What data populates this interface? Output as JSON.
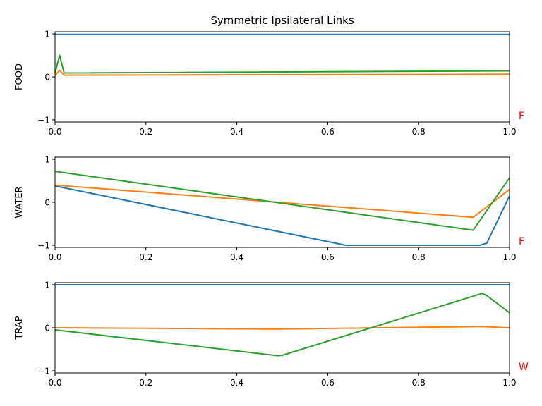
{
  "title": "Symmetric Ipsilateral Links",
  "colors": {
    "series1": "#1f77b4",
    "series2": "#ff7f0e",
    "series3": "#2ca02c",
    "corner_label": "#ff0000"
  },
  "chart_data": [
    {
      "type": "line",
      "ylabel": "FOOD",
      "corner_label": "F",
      "xlim": [
        0,
        1
      ],
      "ylim": [
        -1.05,
        1.05
      ],
      "xticks": [
        "0.0",
        "0.2",
        "0.4",
        "0.6",
        "0.8",
        "1.0"
      ],
      "yticks": [
        "−1",
        "0",
        "1"
      ],
      "series": [
        {
          "color": "#1f77b4",
          "x": [
            0,
            1
          ],
          "y": [
            0.99,
            0.99
          ]
        },
        {
          "color": "#ff7f0e",
          "x": [
            0,
            0.01,
            0.02,
            1
          ],
          "y": [
            0.03,
            0.15,
            0.04,
            0.06
          ]
        },
        {
          "color": "#2ca02c",
          "x": [
            0,
            0.01,
            0.02,
            1
          ],
          "y": [
            0.08,
            0.5,
            0.09,
            0.14
          ]
        }
      ]
    },
    {
      "type": "line",
      "ylabel": "WATER",
      "corner_label": "F",
      "xlim": [
        0,
        1
      ],
      "ylim": [
        -1.05,
        1.05
      ],
      "xticks": [
        "0.0",
        "0.2",
        "0.4",
        "0.6",
        "0.8",
        "1.0"
      ],
      "yticks": [
        "−1",
        "0",
        "1"
      ],
      "series": [
        {
          "color": "#1f77b4",
          "x": [
            0,
            0.64,
            0.935,
            0.95,
            1
          ],
          "y": [
            0.38,
            -1.0,
            -1.0,
            -0.95,
            0.15
          ]
        },
        {
          "color": "#ff7f0e",
          "x": [
            0,
            0.92,
            1
          ],
          "y": [
            0.4,
            -0.35,
            0.3
          ]
        },
        {
          "color": "#2ca02c",
          "x": [
            0,
            0.92,
            1
          ],
          "y": [
            0.72,
            -0.65,
            0.57
          ]
        }
      ]
    },
    {
      "type": "line",
      "ylabel": "TRAP",
      "corner_label": "W",
      "xlim": [
        0,
        1
      ],
      "ylim": [
        -1.05,
        1.05
      ],
      "xticks": [
        "0.0",
        "0.2",
        "0.4",
        "0.6",
        "0.8",
        "1.0"
      ],
      "yticks": [
        "−1",
        "0",
        "1"
      ],
      "series": [
        {
          "color": "#1f77b4",
          "x": [
            0,
            1
          ],
          "y": [
            1.0,
            1.0
          ]
        },
        {
          "color": "#ff7f0e",
          "x": [
            0,
            0.5,
            0.94,
            1
          ],
          "y": [
            0.0,
            -0.03,
            0.03,
            0.0
          ]
        },
        {
          "color": "#2ca02c",
          "x": [
            0,
            0.49,
            0.5,
            0.94,
            0.95,
            1
          ],
          "y": [
            -0.05,
            -0.65,
            -0.64,
            0.8,
            0.75,
            0.35
          ]
        }
      ]
    }
  ]
}
